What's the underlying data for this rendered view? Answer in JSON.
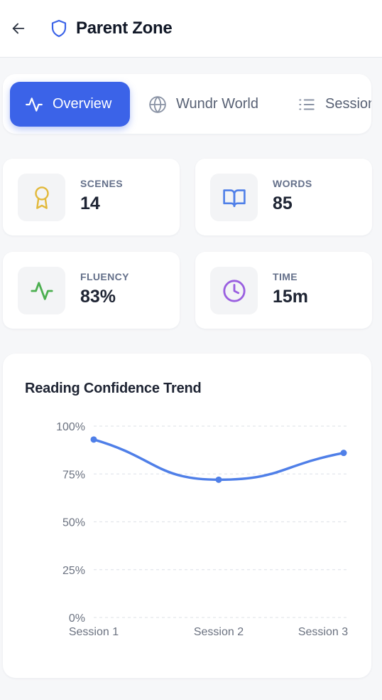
{
  "header": {
    "title": "Parent Zone"
  },
  "tabs": [
    {
      "label": "Overview",
      "icon": "activity-icon",
      "active": true
    },
    {
      "label": "Wundr World",
      "icon": "globe-icon",
      "active": false
    },
    {
      "label": "Sessions",
      "icon": "list-icon",
      "active": false
    }
  ],
  "stats": [
    {
      "label": "SCENES",
      "value": "14",
      "icon": "award-icon",
      "color": "#e2b93b"
    },
    {
      "label": "WORDS",
      "value": "85",
      "icon": "book-icon",
      "color": "#4f7fe8"
    },
    {
      "label": "FLUENCY",
      "value": "83%",
      "icon": "activity-icon",
      "color": "#4caf50"
    },
    {
      "label": "TIME",
      "value": "15m",
      "icon": "clock-icon",
      "color": "#9a5fe0"
    }
  ],
  "chart": {
    "title": "Reading Confidence Trend"
  },
  "chart_data": {
    "type": "line",
    "title": "Reading Confidence Trend",
    "categories": [
      "Session 1",
      "Session 2",
      "Session 3"
    ],
    "series": [
      {
        "values": [
          93,
          72,
          86
        ]
      }
    ],
    "ylim": [
      0,
      100
    ],
    "yticks": [
      "0%",
      "25%",
      "50%",
      "75%",
      "100%"
    ],
    "grid": true,
    "color": "#4f7fe8"
  },
  "colors": {
    "accent": "#3b63e8",
    "line": "#4f7fe8"
  }
}
